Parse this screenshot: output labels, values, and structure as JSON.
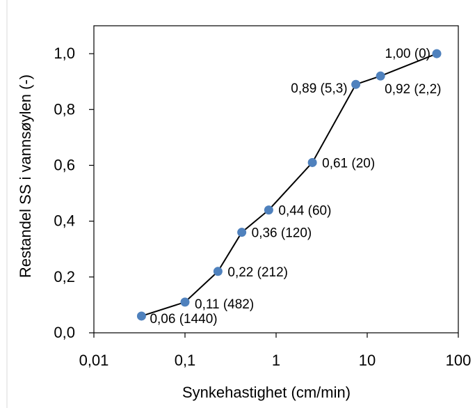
{
  "chart_data": {
    "type": "scatter",
    "x_scale": "log",
    "xlabel": "Synkehastighet (cm/min)",
    "ylabel": "Restandel SS i vannsøylen (-)",
    "xlim": [
      0.01,
      100
    ],
    "ylim": [
      0,
      1.1
    ],
    "x_tick_labels": [
      "0,01",
      "0,1",
      "1",
      "10",
      "100"
    ],
    "y_tick_labels": [
      "0,0",
      "0,2",
      "0,4",
      "0,6",
      "0,8",
      "1,0"
    ],
    "grid": false,
    "legend": "none",
    "line_color": "#000000",
    "marker_color": "#4f81bd",
    "series": [
      {
        "x": [
          0.0333,
          0.1,
          0.23,
          0.42,
          0.83,
          2.5,
          7.5,
          14,
          58
        ],
        "y": [
          0.06,
          0.11,
          0.22,
          0.36,
          0.44,
          0.61,
          0.89,
          0.92,
          1.0
        ],
        "labels": [
          "0,06 (1440)",
          "0,11 (482)",
          "0,22 (212)",
          "0,36 (120)",
          "0,44 (60)",
          "0,61 (20)",
          "0,89 (5,3)",
          "0,92 (2,2)",
          "1,00 (0)"
        ]
      }
    ]
  }
}
